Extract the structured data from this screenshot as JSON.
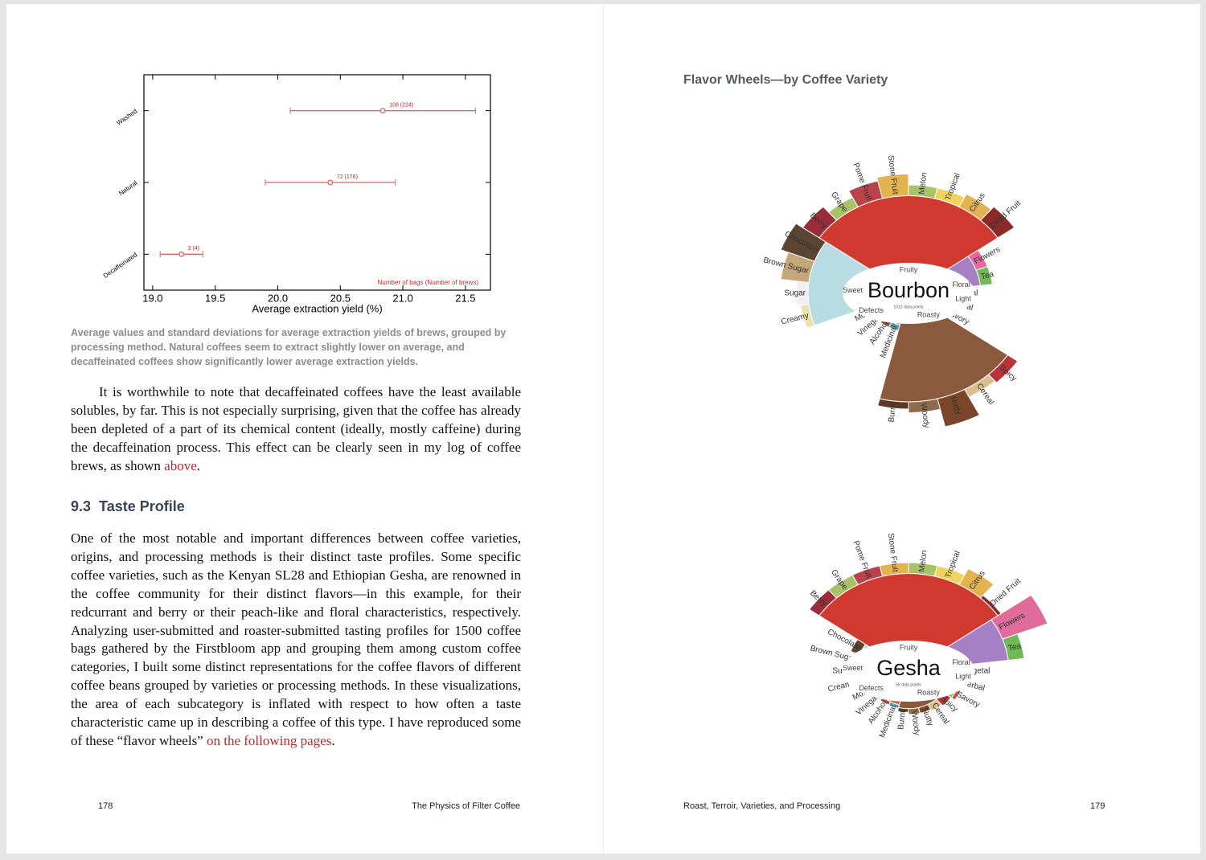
{
  "left_page": {
    "caption": "Average values and standard deviations for average extraction yields of brews, grouped by processing method. Natural coffees seem to extract slightly lower on average, and decaffeinated coffees show significantly lower average extraction yields.",
    "paragraphs": [
      {
        "text": "It is worthwhile to note that decaffeinated coffees have the least available solubles, by far. This is not especially surprising, given that the coffee has already been depleted of a part of its chemical content (ideally, mostly caffeine) during the decaffeination process. This effect can be clearly seen in my log of coffee brews, as shown ",
        "link": "above",
        "end": "."
      },
      {
        "text": "One of the most notable and important differences between coffee varieties, origins, and processing methods is their distinct taste profiles. Some specific coffee varieties, such as the Kenyan SL28 and Ethiopian Gesha, are renowned in the coffee community for their distinct flavors—in this example, for their redcurrant and berry or their peach-like and floral characteristics, respectively. Analyzing user-submitted and roaster-submitted tasting profiles for 1500 coffee bags gathered by the Firstbloom app and grouping them among custom coffee categories, I built some distinct representations for the coffee flavors of different coffee beans grouped by varieties or processing methods. In these visualizations, the area of each subcategory is inflated with respect to how often a taste characteristic came up in describing a coffee of this type. I have reproduced some of these “flavor wheels” ",
        "link": "on the following pages",
        "end": "."
      }
    ],
    "section": {
      "number": "9.3",
      "title": "Taste Profile"
    },
    "footer": {
      "page_number": "178",
      "running_title": "The Physics of Filter Coffee"
    }
  },
  "right_page": {
    "title": "Flavor Wheels—by Coffee Variety",
    "footer": {
      "running_title": "Roast, Terroir, Varieties, and Processing",
      "page_number": "179"
    }
  },
  "chart_data": [
    {
      "type": "errorbar",
      "xlabel": "Average extraction yield (%)",
      "annotation": "Number of bags (Number of brews)",
      "categories": [
        "Washed",
        "Natural",
        "Decaffeinated"
      ],
      "values": [
        20.84,
        20.42,
        19.23
      ],
      "errors": [
        0.74,
        0.52,
        0.17
      ],
      "labels": [
        "108 (224)",
        "72 (176)",
        "3 (4)"
      ],
      "color": "#e06666",
      "xlim": [
        18.93,
        21.7
      ],
      "xticks": [
        {
          "value": 19,
          "label": "19.0"
        },
        19.5,
        {
          "value": 20,
          "label": "20.0"
        },
        20.5,
        {
          "value": 21,
          "label": "21.0"
        },
        21.5
      ]
    },
    {
      "type": "sunburst",
      "title": "Bourbon",
      "subtitle": "1012 data points",
      "groups": [
        {
          "name": "Fruity",
          "value": 95,
          "color": "#d0392f",
          "children": [
            {
              "name": "Berry",
              "value": 25,
              "color": "#9b2d3a"
            },
            {
              "name": "Grape",
              "value": 15,
              "color": "#a9c267"
            },
            {
              "name": "Pome Fruit",
              "value": 25,
              "color": "#b8434c"
            },
            {
              "name": "Stone Fruit",
              "value": 30,
              "color": "#e2b350"
            },
            {
              "name": "Melon",
              "value": 15,
              "color": "#a9c267"
            },
            {
              "name": "Tropical",
              "value": 15,
              "color": "#efd35c"
            },
            {
              "name": "Citrus",
              "value": 20,
              "color": "#e2b350"
            },
            {
              "name": "Dried Fruit",
              "value": 25,
              "color": "#8c2a2a"
            }
          ]
        },
        {
          "name": "Floral",
          "value": 50,
          "color": "#a77fc4",
          "children": [
            {
              "name": "Flowers",
              "value": 15,
              "color": "#e06b9c"
            },
            {
              "name": "Tea",
              "value": 15,
              "color": "#6fba57"
            }
          ]
        },
        {
          "name": "Light",
          "value": 10,
          "color": "#8cc152",
          "children": [
            {
              "name": "Vegetal",
              "value": 5,
              "color": "#6fa24a"
            },
            {
              "name": "Herbal",
              "value": 5,
              "color": "#4f7a3a"
            },
            {
              "name": "Savory",
              "value": 5,
              "color": "#c0504d"
            }
          ]
        },
        {
          "name": "Roasty",
          "value": 110,
          "color": "#8b5a3c",
          "children": [
            {
              "name": "Spicy",
              "value": 15,
              "color": "#b8343a"
            },
            {
              "name": "Cereal",
              "value": 12,
              "color": "#d8bf8c"
            },
            {
              "name": "Nutty",
              "value": 40,
              "color": "#7a4528"
            },
            {
              "name": "Woody",
              "value": 15,
              "color": "#8d6b4e"
            },
            {
              "name": "Burnt",
              "value": 10,
              "color": "#5b3a2a"
            }
          ]
        },
        {
          "name": "Defects",
          "value": 5,
          "color": "#c46a3c",
          "children": [
            {
              "name": "Medicinal",
              "value": 8,
              "color": "#4aa3b5"
            },
            {
              "name": "Alcohol",
              "value": 8,
              "color": "#b14a3a"
            },
            {
              "name": "Vinegar",
              "value": 5,
              "color": "#c77b4a"
            },
            {
              "name": "Moldy",
              "value": 5,
              "color": "#6b6b4a"
            }
          ]
        },
        {
          "name": "Sweet",
          "value": 85,
          "color": "#b7dde3",
          "children": [
            {
              "name": "Creamy",
              "value": 10,
              "color": "#efe2a8"
            },
            {
              "name": "Sugar",
              "value": 15,
              "color": "#f3eef5"
            },
            {
              "name": "Brown Sugar",
              "value": 35,
              "color": "#c4a77a"
            },
            {
              "name": "Chocolate",
              "value": 45,
              "color": "#5b4530"
            }
          ]
        }
      ]
    },
    {
      "type": "sunburst",
      "title": "Gesha",
      "subtitle": "56 data points",
      "groups": [
        {
          "name": "Fruity",
          "value": 95,
          "color": "#d0392f",
          "children": [
            {
              "name": "Berry",
              "value": 15,
              "color": "#9b2d3a"
            },
            {
              "name": "Grape",
              "value": 15,
              "color": "#a9c267"
            },
            {
              "name": "Pome Fruit",
              "value": 15,
              "color": "#b8434c"
            },
            {
              "name": "Stone Fruit",
              "value": 15,
              "color": "#e2b350"
            },
            {
              "name": "Melon",
              "value": 15,
              "color": "#a9c267"
            },
            {
              "name": "Tropical",
              "value": 15,
              "color": "#efd35c"
            },
            {
              "name": "Citrus",
              "value": 25,
              "color": "#e2b350"
            },
            {
              "name": "Dried Fruit",
              "value": 5,
              "color": "#8c2a2a"
            }
          ]
        },
        {
          "name": "Floral",
          "value": 85,
          "color": "#a77fc4",
          "children": [
            {
              "name": "Flowers",
              "value": 60,
              "color": "#e06b9c"
            },
            {
              "name": "Tea",
              "value": 20,
              "color": "#6fba57"
            }
          ]
        },
        {
          "name": "Light",
          "value": 25,
          "color": "#8cc152",
          "children": [
            {
              "name": "Vegetal",
              "value": 5,
              "color": "#6fa24a"
            },
            {
              "name": "Herbal",
              "value": 5,
              "color": "#4f7a3a"
            },
            {
              "name": "Savory",
              "value": 5,
              "color": "#c0504d"
            }
          ]
        },
        {
          "name": "Roasty",
          "value": 12,
          "color": "#8b5a3c",
          "children": [
            {
              "name": "Spicy",
              "value": 12,
              "color": "#b8343a"
            },
            {
              "name": "Cereal",
              "value": 10,
              "color": "#d8bf8c"
            },
            {
              "name": "Nutty",
              "value": 8,
              "color": "#7a4528"
            },
            {
              "name": "Woody",
              "value": 8,
              "color": "#8d6b4e"
            },
            {
              "name": "Burnt",
              "value": 5,
              "color": "#5b3a2a"
            }
          ]
        },
        {
          "name": "Defects",
          "value": 8,
          "color": "#c46a3c",
          "children": [
            {
              "name": "Medicinal",
              "value": 5,
              "color": "#4aa3b5"
            },
            {
              "name": "Alcohol",
              "value": 5,
              "color": "#b14a3a"
            },
            {
              "name": "Vinegar",
              "value": 5,
              "color": "#c77b4a"
            },
            {
              "name": "Moldy",
              "value": 5,
              "color": "#6b6b4a"
            }
          ]
        },
        {
          "name": "Sweet",
          "value": 25,
          "color": "#b7dde3",
          "children": [
            {
              "name": "Creamy",
              "value": 5,
              "color": "#efe2a8"
            },
            {
              "name": "Sugar",
              "value": 5,
              "color": "#f3eef5"
            },
            {
              "name": "Brown Sugar",
              "value": 8,
              "color": "#c4a77a"
            },
            {
              "name": "Chocolate",
              "value": 12,
              "color": "#5b4530"
            }
          ]
        }
      ]
    }
  ]
}
